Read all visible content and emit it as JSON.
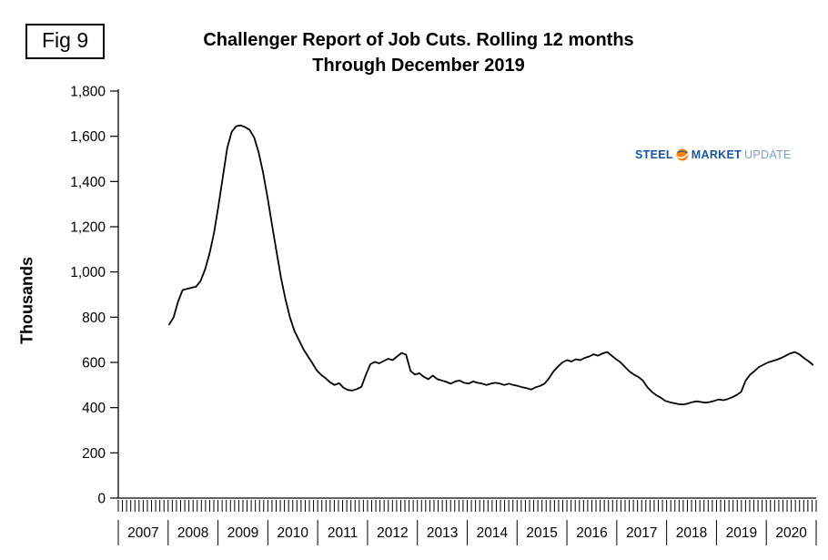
{
  "fig_label": "Fig 9",
  "title_line1": "Challenger Report of Job Cuts. Rolling 12 months",
  "title_line2": "Through December 2019",
  "y_axis_title": "Thousands",
  "logo": {
    "part1": "STEEL",
    "part2": "MARKET",
    "part3": "UPDATE",
    "color_primary": "#1a5499",
    "color_secondary": "#7d9fc7",
    "color_accent": "#f28211"
  },
  "chart_data": {
    "type": "line",
    "title": "Challenger Report of Job Cuts. Rolling 12 months Through December 2019",
    "ylabel": "Thousands",
    "ylim": [
      0,
      1800
    ],
    "line_color": "#000000",
    "grid": false,
    "legend": "none",
    "y_ticks": [
      {
        "value": 0,
        "label": "0"
      },
      {
        "value": 200,
        "label": "200"
      },
      {
        "value": 400,
        "label": "400"
      },
      {
        "value": 600,
        "label": "600"
      },
      {
        "value": 800,
        "label": "800"
      },
      {
        "value": 1000,
        "label": "1,000"
      },
      {
        "value": 1200,
        "label": "1,200"
      },
      {
        "value": 1400,
        "label": "1,400"
      },
      {
        "value": 1600,
        "label": "1,600"
      },
      {
        "value": 1800,
        "label": "1,800"
      }
    ],
    "x_tick_labels": [
      "2007",
      "2008",
      "2009",
      "2010",
      "2011",
      "2012",
      "2013",
      "2014",
      "2015",
      "2016",
      "2017",
      "2018",
      "2019",
      "2020"
    ],
    "x_start": "2007-12",
    "x_end": "2019-12",
    "frequency": "monthly",
    "values": [
      768,
      800,
      870,
      920,
      925,
      930,
      935,
      960,
      1010,
      1080,
      1170,
      1290,
      1420,
      1550,
      1620,
      1645,
      1648,
      1640,
      1628,
      1595,
      1530,
      1440,
      1330,
      1210,
      1090,
      975,
      880,
      800,
      740,
      700,
      660,
      628,
      598,
      565,
      545,
      530,
      512,
      500,
      508,
      488,
      478,
      476,
      482,
      492,
      545,
      592,
      602,
      596,
      606,
      616,
      610,
      626,
      642,
      634,
      562,
      546,
      552,
      536,
      526,
      542,
      526,
      520,
      514,
      506,
      516,
      520,
      510,
      506,
      516,
      510,
      506,
      500,
      506,
      510,
      506,
      500,
      506,
      500,
      496,
      490,
      486,
      480,
      490,
      496,
      506,
      530,
      560,
      582,
      600,
      610,
      604,
      614,
      610,
      620,
      626,
      636,
      630,
      640,
      646,
      630,
      614,
      600,
      580,
      560,
      546,
      536,
      520,
      490,
      470,
      455,
      444,
      430,
      424,
      420,
      415,
      414,
      418,
      424,
      428,
      425,
      422,
      425,
      430,
      436,
      433,
      438,
      446,
      456,
      470,
      520,
      546,
      562,
      580,
      590,
      600,
      606,
      612,
      620,
      630,
      640,
      646,
      636,
      620,
      606,
      590
    ]
  }
}
